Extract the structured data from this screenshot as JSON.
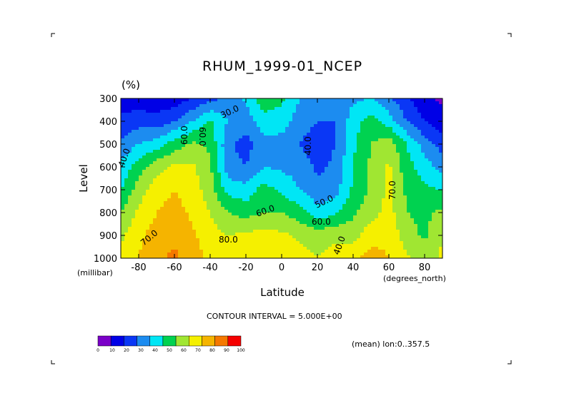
{
  "chart_data": {
    "type": "heatmap",
    "title": "RHUM_1999-01_NCEP",
    "units": "(%)",
    "xlabel": "Latitude",
    "ylabel": "Level",
    "x_unit": "(degrees_north)",
    "y_unit": "(millibar)",
    "xlim": [
      -90,
      90
    ],
    "ylim": [
      1000,
      300
    ],
    "x_ticks": [
      "-80",
      "-60",
      "-40",
      "-20",
      "0",
      "20",
      "40",
      "60",
      "80"
    ],
    "y_ticks": [
      "300",
      "400",
      "500",
      "600",
      "700",
      "800",
      "900",
      "1000"
    ],
    "contour_interval": "CONTOUR INTERVAL = 5.000E+00",
    "footnote": "(mean) lon:0..357.5",
    "colorbar_ticks": [
      "0",
      "10",
      "20",
      "30",
      "40",
      "50",
      "60",
      "70",
      "80",
      "90",
      "100"
    ],
    "colorbar_colors": [
      "#7a00c8",
      "#0000e6",
      "#0a37f5",
      "#1c8cf0",
      "#00e6f5",
      "#00d250",
      "#a0e632",
      "#f5f000",
      "#f5b400",
      "#f57800",
      "#f50000"
    ],
    "contour_labels": [
      "40.0",
      "60.0",
      "60.0",
      "30.0",
      "40.0",
      "50.0",
      "60.0",
      "60.0",
      "70.0",
      "80.0",
      "70.0",
      "40.0"
    ],
    "x": [
      -90,
      -80,
      -70,
      -60,
      -50,
      -40,
      -30,
      -20,
      -10,
      0,
      10,
      20,
      30,
      40,
      50,
      60,
      70,
      80,
      90
    ],
    "levels": [
      300,
      400,
      500,
      600,
      700,
      800,
      900,
      1000
    ],
    "values": [
      [
        15,
        14,
        12,
        14,
        20,
        26,
        34,
        42,
        56,
        52,
        40,
        34,
        32,
        38,
        40,
        32,
        22,
        12,
        8
      ],
      [
        22,
        26,
        24,
        30,
        40,
        52,
        40,
        34,
        46,
        45,
        35,
        30,
        30,
        45,
        55,
        45,
        30,
        20,
        14
      ],
      [
        32,
        40,
        45,
        55,
        62,
        58,
        32,
        26,
        36,
        36,
        30,
        24,
        30,
        48,
        60,
        66,
        50,
        35,
        25
      ],
      [
        42,
        55,
        66,
        72,
        72,
        62,
        34,
        30,
        40,
        38,
        36,
        28,
        32,
        50,
        62,
        72,
        54,
        45,
        36
      ],
      [
        50,
        65,
        75,
        80,
        75,
        65,
        46,
        44,
        54,
        48,
        40,
        32,
        36,
        52,
        62,
        72,
        58,
        52,
        50
      ],
      [
        60,
        72,
        80,
        84,
        78,
        70,
        60,
        56,
        60,
        60,
        55,
        44,
        48,
        58,
        66,
        74,
        60,
        58,
        62
      ],
      [
        68,
        78,
        84,
        88,
        82,
        74,
        70,
        72,
        74,
        72,
        68,
        66,
        68,
        66,
        76,
        78,
        64,
        58,
        70
      ],
      [
        72,
        80,
        88,
        92,
        84,
        78,
        76,
        78,
        80,
        78,
        74,
        70,
        74,
        78,
        84,
        80,
        72,
        66,
        72
      ]
    ]
  }
}
